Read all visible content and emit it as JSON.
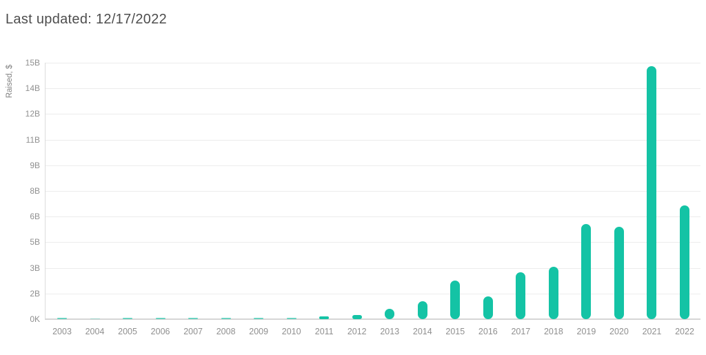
{
  "header": {
    "title": "Last updated: 12/17/2022"
  },
  "chart_data": {
    "type": "bar",
    "title": "Last updated: 12/17/2022",
    "ylabel": "Raised, $",
    "xlabel": "",
    "values_unit": "billions of dollars (B)",
    "categories": [
      "2003",
      "2004",
      "2005",
      "2006",
      "2007",
      "2008",
      "2009",
      "2010",
      "2011",
      "2012",
      "2013",
      "2014",
      "2015",
      "2016",
      "2017",
      "2018",
      "2019",
      "2020",
      "2021",
      "2022"
    ],
    "values": [
      0.05,
      0.01,
      0.05,
      0.06,
      0.1,
      0.07,
      0.08,
      0.12,
      0.15,
      0.23,
      0.6,
      1.05,
      2.25,
      1.35,
      2.75,
      3.05,
      5.55,
      5.4,
      14.8,
      6.65
    ],
    "ylim": [
      0,
      15
    ],
    "y_ticks": [
      {
        "value": 0,
        "label": "0K"
      },
      {
        "value": 1.5,
        "label": "2B"
      },
      {
        "value": 3,
        "label": "3B"
      },
      {
        "value": 4.5,
        "label": "5B"
      },
      {
        "value": 6,
        "label": "6B"
      },
      {
        "value": 7.5,
        "label": "8B"
      },
      {
        "value": 9,
        "label": "9B"
      },
      {
        "value": 10.5,
        "label": "11B"
      },
      {
        "value": 12,
        "label": "12B"
      },
      {
        "value": 13.5,
        "label": "14B"
      },
      {
        "value": 15,
        "label": "15B"
      }
    ],
    "grid": "horizontal",
    "legend": "none",
    "colors": {
      "bar": "#14c3a5",
      "gridline": "#ececec",
      "axis_line": "#d6d6d6",
      "tick_text": "#8f8f8f",
      "title_text": "#4d4d4d"
    }
  }
}
